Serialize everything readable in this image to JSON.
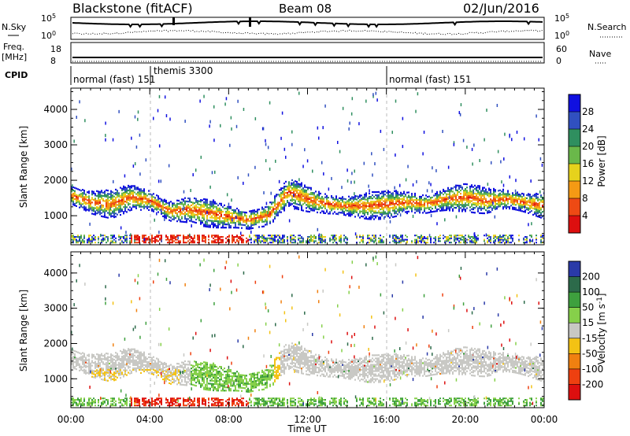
{
  "header": {
    "station": "Blackstone (fitACF)",
    "beam": "Beam 08",
    "date": "02/Jun/2016"
  },
  "aux_panels": {
    "nsky_label": "N.Sky",
    "nsky_ticks": [
      "10^5",
      "10^0"
    ],
    "nsearch_label": "N.Search",
    "nsearch_ticks": [
      "10^5",
      "10^0"
    ],
    "freq_label": "Freq.",
    "freq_unit": "[MHz]",
    "freq_ticks": [
      "18",
      "8"
    ],
    "nave_label": "Nave",
    "nave_ticks": [
      "60",
      "0"
    ],
    "cpid_label": "CPID",
    "cpid_segments": [
      {
        "label": "normal (fast) 151",
        "start_hr": 0
      },
      {
        "label": "themis 3300",
        "start_hr": 4.0
      },
      {
        "label": "normal (fast) 151",
        "start_hr": 16.0
      }
    ]
  },
  "chart_data": [
    {
      "type": "heatmap",
      "name": "power",
      "ylabel": "Slant Range [km]",
      "xlabel": "",
      "x_ticks": [
        "00:00",
        "04:00",
        "08:00",
        "12:00",
        "16:00",
        "20:00",
        "00:00"
      ],
      "xlim_hours": [
        0,
        24
      ],
      "ylim_km": [
        180,
        4600
      ],
      "y_ticks": [
        1000,
        2000,
        3000,
        4000
      ],
      "colorbar": {
        "label": "Power [dB]",
        "ticks": [
          "4",
          "8",
          "12",
          "16",
          "20",
          "24",
          "28"
        ],
        "range": [
          0,
          30
        ],
        "colors": [
          "#1010e0",
          "#3050c0",
          "#2f8f5f",
          "#6ab84a",
          "#e6d21c",
          "#f59a14",
          "#ee4a14",
          "#dd0f0f"
        ]
      },
      "features": [
        {
          "desc": "F-region band",
          "points_hr_km": [
            [
              0,
              1550
            ],
            [
              1,
              1350
            ],
            [
              2,
              1300
            ],
            [
              3,
              1500
            ],
            [
              4,
              1400
            ],
            [
              5,
              1100
            ],
            [
              6,
              1150
            ],
            [
              7,
              1050
            ],
            [
              8,
              950
            ],
            [
              9,
              850
            ],
            [
              10,
              1000
            ],
            [
              11,
              1650
            ],
            [
              12,
              1450
            ],
            [
              13,
              1300
            ],
            [
              14,
              1250
            ],
            [
              15,
              1250
            ],
            [
              16,
              1300
            ],
            [
              17,
              1350
            ],
            [
              18,
              1300
            ],
            [
              19,
              1450
            ],
            [
              20,
              1500
            ],
            [
              21,
              1400
            ],
            [
              22,
              1450
            ],
            [
              23,
              1350
            ],
            [
              24,
              1250
            ]
          ]
        },
        {
          "desc": "near-range E-region",
          "range_km": [
            200,
            450
          ]
        }
      ]
    },
    {
      "type": "heatmap",
      "name": "velocity",
      "ylabel": "Slant Range [km]",
      "xlabel": "Time UT",
      "x_ticks": [
        "00:00",
        "04:00",
        "08:00",
        "12:00",
        "16:00",
        "20:00",
        "00:00"
      ],
      "xlim_hours": [
        0,
        24
      ],
      "ylim_km": [
        180,
        4600
      ],
      "y_ticks": [
        1000,
        2000,
        3000,
        4000
      ],
      "colorbar": {
        "label": "Velocity [m s^-1]",
        "ticks": [
          "200",
          "100",
          "50",
          "15",
          "-15",
          "-50",
          "-100",
          "-200"
        ],
        "colors": [
          "#2a3aa8",
          "#2c6a4a",
          "#3ea03e",
          "#86d04a",
          "#c8c8c4",
          "#f3c214",
          "#f08010",
          "#ee4010",
          "#dd0f0f"
        ]
      },
      "features": [
        {
          "desc": "ground scatter grey band",
          "velocity": 0
        },
        {
          "desc": "positive flow",
          "time_hr": [
            6,
            10
          ],
          "range_km": [
            700,
            1800
          ],
          "velocity": 50
        },
        {
          "desc": "negative flow",
          "time_hr": [
            1,
            5
          ],
          "range_km": [
            500,
            1200
          ],
          "velocity": -50
        }
      ]
    }
  ]
}
